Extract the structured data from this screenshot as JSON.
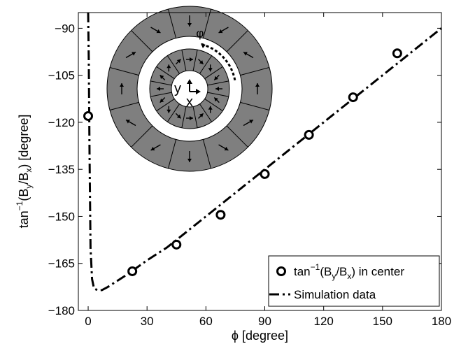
{
  "chart_data": {
    "type": "scatter",
    "xlabel": "ϕ [degree]",
    "ylabel": {
      "prefix": "tan",
      "sup": "−1",
      "mid1": "(B",
      "sub1": "y",
      "mid2": "/B",
      "sub2": "x",
      "suffix": ") [degree]"
    },
    "xlim": [
      -5,
      180
    ],
    "ylim": [
      -180,
      -85
    ],
    "xticks": [
      0,
      30,
      60,
      90,
      120,
      150,
      180
    ],
    "yticks": [
      -180,
      -165,
      -150,
      -135,
      -120,
      -105,
      -90
    ],
    "xtick_labels": [
      "0",
      "30",
      "60",
      "90",
      "120",
      "150",
      "180"
    ],
    "ytick_labels": [
      "−180",
      "−165",
      "−150",
      "−135",
      "−120",
      "−105",
      "−90"
    ],
    "grid": false,
    "legend_placement": "bottom-right",
    "legend": [
      {
        "prefix": "tan",
        "sup": "−1",
        "mid1": "(B",
        "sub1": "y",
        "mid2": "/B",
        "sub2": "x",
        "suffix": ") in center",
        "marker": "circle"
      },
      {
        "label": "Simulation data",
        "marker": "dash-dot"
      }
    ],
    "series": [
      {
        "kind": "points",
        "x": [
          0,
          22.5,
          45,
          67.5,
          90,
          112.5,
          135,
          157.5
        ],
        "y": [
          -118,
          -167.5,
          -159,
          -149.5,
          -136.5,
          -124,
          -112,
          -98
        ]
      },
      {
        "kind": "line",
        "x": [
          0,
          0.3,
          0.7,
          1.2,
          2,
          3,
          5,
          7,
          10,
          20,
          30,
          40,
          50,
          60,
          70,
          80,
          90,
          100,
          110,
          120,
          130,
          140,
          150,
          160,
          170,
          180
        ],
        "y": [
          -85,
          -100,
          -130,
          -160,
          -170,
          -173,
          -173.6,
          -173.5,
          -172.5,
          -168.5,
          -164,
          -160,
          -155,
          -150,
          -145,
          -140,
          -135,
          -130,
          -125,
          -120,
          -115,
          -110,
          -105,
          -100,
          -95,
          -90
        ]
      }
    ]
  },
  "inset": {
    "angle_label": "φ",
    "axis_y_label": "y",
    "axis_x_label": "x",
    "colors": {
      "segment_fill": "#7f7f7f",
      "gap_fill": "#ffffff",
      "outline": "#000000"
    }
  }
}
